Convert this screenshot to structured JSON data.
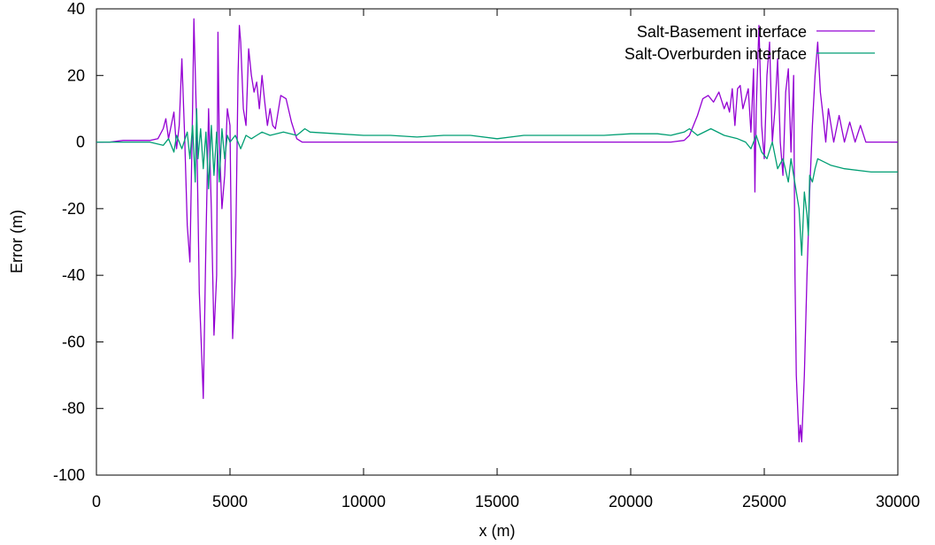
{
  "chart_data": {
    "type": "line",
    "xlabel": "x (m)",
    "ylabel": "Error (m)",
    "xlim": [
      0,
      30000
    ],
    "ylim": [
      -100,
      40
    ],
    "xticks": [
      0,
      5000,
      10000,
      15000,
      20000,
      25000,
      30000
    ],
    "yticks": [
      -100,
      -80,
      -60,
      -40,
      -20,
      0,
      20,
      40
    ],
    "grid": false,
    "legend_position": "top-right",
    "series": [
      {
        "name": "Salt-Basement interface",
        "color": "#9400d3",
        "points": [
          [
            0,
            0
          ],
          [
            500,
            0
          ],
          [
            1000,
            0.5
          ],
          [
            1500,
            0.5
          ],
          [
            2000,
            0.5
          ],
          [
            2300,
            1
          ],
          [
            2500,
            4
          ],
          [
            2600,
            7
          ],
          [
            2700,
            1
          ],
          [
            2900,
            9
          ],
          [
            3000,
            -2
          ],
          [
            3100,
            5
          ],
          [
            3200,
            25
          ],
          [
            3300,
            2
          ],
          [
            3400,
            -25
          ],
          [
            3500,
            -36
          ],
          [
            3600,
            10
          ],
          [
            3650,
            37
          ],
          [
            3750,
            5
          ],
          [
            3850,
            -45
          ],
          [
            3950,
            -66
          ],
          [
            4000,
            -77
          ],
          [
            4100,
            -30
          ],
          [
            4200,
            10
          ],
          [
            4300,
            -20
          ],
          [
            4400,
            -58
          ],
          [
            4500,
            -40
          ],
          [
            4550,
            33
          ],
          [
            4600,
            0
          ],
          [
            4700,
            -20
          ],
          [
            4800,
            -10
          ],
          [
            4900,
            10
          ],
          [
            5000,
            5
          ],
          [
            5050,
            -30
          ],
          [
            5100,
            -59
          ],
          [
            5200,
            -40
          ],
          [
            5300,
            20
          ],
          [
            5350,
            35
          ],
          [
            5400,
            30
          ],
          [
            5500,
            10
          ],
          [
            5600,
            5
          ],
          [
            5700,
            28
          ],
          [
            5800,
            20
          ],
          [
            5900,
            15
          ],
          [
            6000,
            18
          ],
          [
            6100,
            10
          ],
          [
            6200,
            20
          ],
          [
            6300,
            12
          ],
          [
            6400,
            5
          ],
          [
            6500,
            10
          ],
          [
            6600,
            5
          ],
          [
            6700,
            4
          ],
          [
            6900,
            14
          ],
          [
            7100,
            13
          ],
          [
            7300,
            6
          ],
          [
            7500,
            1
          ],
          [
            7700,
            0
          ],
          [
            8000,
            0
          ],
          [
            10000,
            0
          ],
          [
            12000,
            0
          ],
          [
            14000,
            0
          ],
          [
            16000,
            0
          ],
          [
            18000,
            0
          ],
          [
            20000,
            0
          ],
          [
            21500,
            0
          ],
          [
            22000,
            0.5
          ],
          [
            22200,
            2
          ],
          [
            22500,
            8
          ],
          [
            22700,
            13
          ],
          [
            22900,
            14
          ],
          [
            23100,
            12
          ],
          [
            23300,
            15
          ],
          [
            23500,
            10
          ],
          [
            23600,
            12
          ],
          [
            23700,
            9
          ],
          [
            23800,
            16
          ],
          [
            23900,
            5
          ],
          [
            24000,
            16
          ],
          [
            24100,
            17
          ],
          [
            24200,
            10
          ],
          [
            24300,
            13
          ],
          [
            24400,
            16
          ],
          [
            24500,
            3
          ],
          [
            24600,
            22
          ],
          [
            24650,
            -15
          ],
          [
            24700,
            10
          ],
          [
            24800,
            35
          ],
          [
            24900,
            5
          ],
          [
            25000,
            -5
          ],
          [
            25100,
            20
          ],
          [
            25200,
            30
          ],
          [
            25300,
            0
          ],
          [
            25400,
            10
          ],
          [
            25500,
            25
          ],
          [
            25600,
            0
          ],
          [
            25700,
            -10
          ],
          [
            25800,
            15
          ],
          [
            25900,
            22
          ],
          [
            26000,
            -3
          ],
          [
            26100,
            20
          ],
          [
            26150,
            -40
          ],
          [
            26200,
            -70
          ],
          [
            26300,
            -90
          ],
          [
            26350,
            -85
          ],
          [
            26400,
            -90
          ],
          [
            26500,
            -70
          ],
          [
            26600,
            -40
          ],
          [
            26700,
            -15
          ],
          [
            26800,
            5
          ],
          [
            26900,
            20
          ],
          [
            27000,
            30
          ],
          [
            27100,
            15
          ],
          [
            27200,
            8
          ],
          [
            27300,
            0
          ],
          [
            27400,
            10
          ],
          [
            27500,
            5
          ],
          [
            27600,
            0
          ],
          [
            27800,
            8
          ],
          [
            28000,
            0
          ],
          [
            28200,
            6
          ],
          [
            28400,
            0
          ],
          [
            28600,
            5
          ],
          [
            28800,
            0
          ],
          [
            29000,
            0
          ],
          [
            29500,
            0
          ],
          [
            30000,
            0
          ]
        ]
      },
      {
        "name": "Salt-Overburden interface",
        "color": "#009e73",
        "points": [
          [
            0,
            0
          ],
          [
            1000,
            0
          ],
          [
            2000,
            0
          ],
          [
            2500,
            -1
          ],
          [
            2700,
            1
          ],
          [
            2900,
            -3
          ],
          [
            3000,
            2
          ],
          [
            3200,
            -2
          ],
          [
            3400,
            3
          ],
          [
            3500,
            -5
          ],
          [
            3600,
            5
          ],
          [
            3700,
            -12
          ],
          [
            3750,
            10
          ],
          [
            3800,
            -5
          ],
          [
            3900,
            4
          ],
          [
            4000,
            -8
          ],
          [
            4100,
            3
          ],
          [
            4200,
            -14
          ],
          [
            4300,
            5
          ],
          [
            4400,
            -10
          ],
          [
            4500,
            3
          ],
          [
            4600,
            -12
          ],
          [
            4700,
            4
          ],
          [
            4800,
            -5
          ],
          [
            4900,
            2
          ],
          [
            5000,
            0
          ],
          [
            5200,
            2
          ],
          [
            5400,
            -2
          ],
          [
            5600,
            2
          ],
          [
            5800,
            1
          ],
          [
            6000,
            2
          ],
          [
            6200,
            3
          ],
          [
            6500,
            2
          ],
          [
            7000,
            3
          ],
          [
            7500,
            2
          ],
          [
            7800,
            4
          ],
          [
            8000,
            3
          ],
          [
            9000,
            2.5
          ],
          [
            10000,
            2
          ],
          [
            11000,
            2
          ],
          [
            12000,
            1.5
          ],
          [
            13000,
            2
          ],
          [
            14000,
            2
          ],
          [
            15000,
            1
          ],
          [
            16000,
            2
          ],
          [
            17000,
            2
          ],
          [
            18000,
            2
          ],
          [
            19000,
            2
          ],
          [
            20000,
            2.5
          ],
          [
            21000,
            2.5
          ],
          [
            21500,
            2
          ],
          [
            22000,
            3
          ],
          [
            22200,
            4
          ],
          [
            22500,
            2
          ],
          [
            23000,
            4
          ],
          [
            23500,
            2
          ],
          [
            24000,
            1
          ],
          [
            24300,
            0
          ],
          [
            24500,
            -2
          ],
          [
            24700,
            2
          ],
          [
            24900,
            -3
          ],
          [
            25100,
            -5
          ],
          [
            25300,
            0
          ],
          [
            25500,
            -8
          ],
          [
            25700,
            -5
          ],
          [
            25900,
            -12
          ],
          [
            26000,
            -5
          ],
          [
            26200,
            -15
          ],
          [
            26300,
            -20
          ],
          [
            26400,
            -34
          ],
          [
            26500,
            -15
          ],
          [
            26600,
            -22
          ],
          [
            26650,
            -28
          ],
          [
            26700,
            -10
          ],
          [
            26800,
            -12
          ],
          [
            26900,
            -8
          ],
          [
            27000,
            -5
          ],
          [
            27500,
            -7
          ],
          [
            28000,
            -8
          ],
          [
            29000,
            -9
          ],
          [
            30000,
            -9
          ]
        ]
      }
    ]
  }
}
